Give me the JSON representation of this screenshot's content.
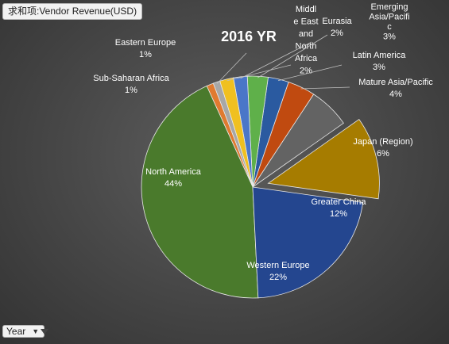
{
  "pivot_field": {
    "label": "求和项:Vendor Revenue(USD)"
  },
  "filter": {
    "label": "Year"
  },
  "chart_data": {
    "type": "pie",
    "title": "2016 YR",
    "categories": [
      "Western Europe",
      "North America",
      "Sub-Saharan Africa",
      "Eastern Europe",
      "Middle East and North Africa",
      "Eurasia",
      "Emerging Asia/Pacific",
      "Latin America",
      "Mature Asia/Pacific",
      "Japan (Region)",
      "Greater China"
    ],
    "values": [
      22,
      44,
      1,
      1,
      2,
      2,
      3,
      3,
      4,
      6,
      12
    ],
    "series": [
      {
        "values": [
          22,
          44,
          1,
          1,
          2,
          2,
          3,
          3,
          4,
          6,
          12
        ]
      }
    ],
    "value_labels": [
      "22%",
      "44%",
      "1%",
      "1%",
      "2%",
      "2%",
      "3%",
      "3%",
      "4%",
      "6%",
      "12%"
    ],
    "exploded": [
      "Greater China"
    ],
    "colors": [
      "#24468f",
      "#4a7a2c",
      "#e07a30",
      "#a7a7a7",
      "#f0c020",
      "#4a76c8",
      "#5fb04a",
      "#2a5aa0",
      "#c04a10",
      "#636363",
      "#a67c00"
    ],
    "legend": "none",
    "label_lines": [
      [
        "Western Europe",
        "22%"
      ],
      [
        "North America",
        "44%"
      ],
      [
        "Sub-Saharan Africa",
        "1%"
      ],
      [
        "Eastern Europe",
        "1%"
      ],
      [
        "Middl",
        "e East",
        "and",
        "North",
        "Africa",
        "2%"
      ],
      [
        "Eurasia",
        "2%"
      ],
      [
        "Emerging",
        "Asia/Pacifi",
        "c",
        "3%"
      ],
      [
        "Latin America",
        "3%"
      ],
      [
        "Mature Asia/Pacific",
        "4%"
      ],
      [
        "Japan (Region)",
        "6%"
      ],
      [
        "Greater China",
        "12%"
      ]
    ]
  }
}
